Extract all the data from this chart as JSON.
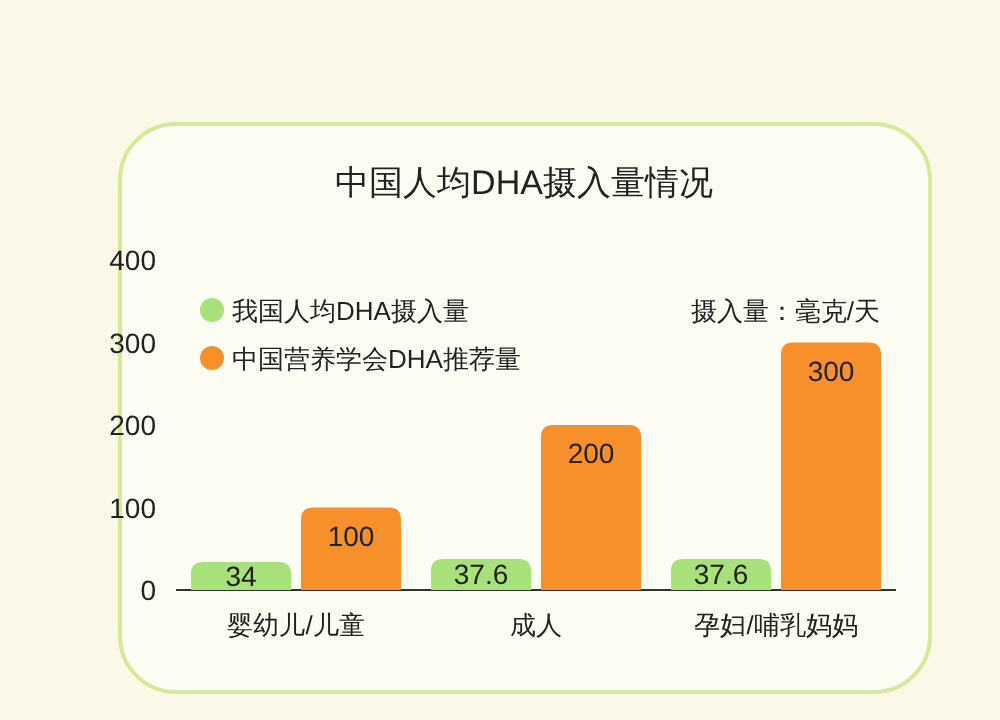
{
  "chart_data": {
    "type": "bar",
    "title": "中国人均DHA摄入量情况",
    "categories": [
      "婴幼儿/儿童",
      "成人",
      "孕妇/哺乳妈妈"
    ],
    "series": [
      {
        "name": "我国人均DHA摄入量",
        "color": "#a8e07a",
        "values": [
          34,
          37.6,
          37.6
        ]
      },
      {
        "name": "中国营养学会DHA推荐量",
        "color": "#f7902a",
        "values": [
          100,
          200,
          300
        ]
      }
    ],
    "ylim": [
      0,
      400
    ],
    "yticks": [
      0,
      100,
      200,
      300,
      400
    ],
    "data_labels": true,
    "legend": "top left",
    "annotations": [
      "摄入量：毫克/天"
    ]
  }
}
